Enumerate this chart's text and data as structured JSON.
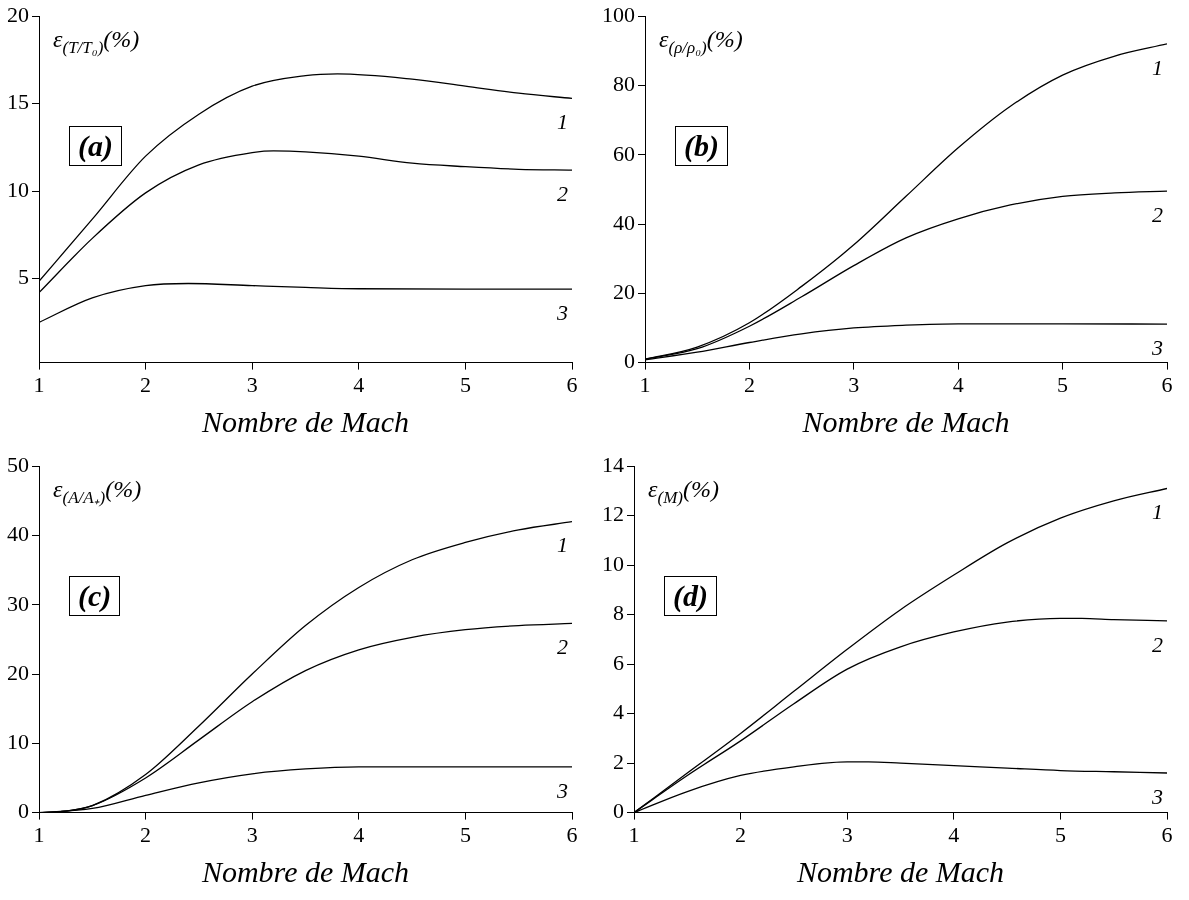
{
  "chart_data": [
    {
      "type": "line",
      "xlabel": "Nombre de Mach",
      "ylabel": "ε$_{(T/T₀)}$(%)",
      "annotations": [
        "(a)"
      ],
      "xlim": [
        1,
        6
      ],
      "xticks": [
        1,
        2,
        3,
        4,
        5,
        6
      ],
      "ylim": [
        0.2,
        20
      ],
      "yticks": [
        5,
        10,
        15,
        20
      ],
      "grid": false,
      "legend": false,
      "marker": "none",
      "line_style": "solid",
      "series": [
        {
          "name": "1",
          "color": "#000000",
          "x": [
            1,
            1.5,
            2,
            2.5,
            3,
            3.5,
            3.8,
            4.5,
            5,
            5.5,
            6
          ],
          "values": [
            4.85,
            8.4,
            12.0,
            14.4,
            16.0,
            16.6,
            16.7,
            16.4,
            16.0,
            15.6,
            15.3
          ]
        },
        {
          "name": "2",
          "color": "#000000",
          "x": [
            1,
            1.5,
            2,
            2.5,
            3,
            3.2,
            3.5,
            4,
            4.5,
            5,
            5.5,
            6
          ],
          "values": [
            4.2,
            7.3,
            9.9,
            11.5,
            12.2,
            12.3,
            12.25,
            12.0,
            11.6,
            11.4,
            11.25,
            11.2
          ]
        },
        {
          "name": "3",
          "color": "#000000",
          "x": [
            1,
            1.5,
            2,
            2.4,
            3,
            3.5,
            4,
            5,
            6
          ],
          "values": [
            2.5,
            3.9,
            4.6,
            4.72,
            4.6,
            4.5,
            4.42,
            4.4,
            4.4
          ]
        }
      ]
    },
    {
      "type": "line",
      "xlabel": "Nombre de Mach",
      "ylabel": "ε$_{(ρ/ρ₀)}$(%)",
      "annotations": [
        "(b)"
      ],
      "xlim": [
        1,
        6
      ],
      "xticks": [
        1,
        2,
        3,
        4,
        5,
        6
      ],
      "ylim": [
        0,
        100
      ],
      "yticks": [
        0,
        20,
        40,
        60,
        80,
        100
      ],
      "grid": false,
      "legend": false,
      "marker": "none",
      "line_style": "solid",
      "series": [
        {
          "name": "1",
          "color": "#000000",
          "x": [
            1,
            1.5,
            2,
            2.5,
            3,
            3.5,
            4,
            4.5,
            5,
            5.5,
            6
          ],
          "values": [
            1,
            4.5,
            11.5,
            22,
            34,
            48,
            62,
            74,
            83,
            88.5,
            92
          ]
        },
        {
          "name": "2",
          "color": "#000000",
          "x": [
            1,
            1.5,
            2,
            2.5,
            3,
            3.5,
            4,
            4.5,
            5,
            5.5,
            6
          ],
          "values": [
            1,
            4,
            10.5,
            19,
            28,
            36,
            41.5,
            45.5,
            48,
            49,
            49.5
          ]
        },
        {
          "name": "3",
          "color": "#000000",
          "x": [
            1,
            1.5,
            2,
            2.5,
            3,
            3.5,
            4,
            5,
            6
          ],
          "values": [
            0.8,
            3,
            5.8,
            8.3,
            10,
            10.8,
            11.2,
            11.2,
            11.1
          ]
        }
      ]
    },
    {
      "type": "line",
      "xlabel": "Nombre de Mach",
      "ylabel": "ε$_{(A/A₊)}$(%)",
      "annotations": [
        "(c)"
      ],
      "xlim": [
        1,
        6
      ],
      "xticks": [
        1,
        2,
        3,
        4,
        5,
        6
      ],
      "ylim": [
        0,
        50
      ],
      "yticks": [
        0,
        10,
        20,
        30,
        40,
        50
      ],
      "grid": false,
      "legend": false,
      "marker": "none",
      "line_style": "solid",
      "series": [
        {
          "name": "1",
          "color": "#000000",
          "x": [
            1,
            1.25,
            1.5,
            2,
            2.5,
            3,
            3.5,
            4,
            4.5,
            5,
            5.5,
            6
          ],
          "values": [
            0,
            0.2,
            1.0,
            5.5,
            12.5,
            20,
            27,
            32.5,
            36.5,
            39,
            40.8,
            42
          ]
        },
        {
          "name": "2",
          "color": "#000000",
          "x": [
            1,
            1.25,
            1.5,
            2,
            2.5,
            3,
            3.5,
            4,
            4.5,
            5,
            5.5,
            6
          ],
          "values": [
            0,
            0.2,
            1.0,
            5,
            10.5,
            16,
            20.5,
            23.5,
            25.3,
            26.4,
            27,
            27.3
          ]
        },
        {
          "name": "3",
          "color": "#000000",
          "x": [
            1,
            1.5,
            2,
            2.5,
            3,
            3.5,
            4,
            5,
            6
          ],
          "values": [
            0,
            0.6,
            2.5,
            4.3,
            5.6,
            6.3,
            6.6,
            6.6,
            6.6
          ]
        }
      ]
    },
    {
      "type": "line",
      "xlabel": "Nombre de Mach",
      "ylabel": "ε$_{(M)}$(%)",
      "annotations": [
        "(d)"
      ],
      "xlim": [
        1,
        6
      ],
      "xticks": [
        1,
        2,
        3,
        4,
        5,
        6
      ],
      "ylim": [
        0,
        14
      ],
      "yticks": [
        0,
        2,
        4,
        6,
        8,
        10,
        12,
        14
      ],
      "grid": false,
      "legend": false,
      "marker": "none",
      "line_style": "solid",
      "series": [
        {
          "name": "1",
          "color": "#000000",
          "x": [
            1,
            1.5,
            2,
            2.5,
            3,
            3.5,
            4,
            4.5,
            5,
            5.5,
            6
          ],
          "values": [
            0,
            1.6,
            3.2,
            4.9,
            6.6,
            8.2,
            9.6,
            10.9,
            11.9,
            12.6,
            13.1
          ]
        },
        {
          "name": "2",
          "color": "#000000",
          "x": [
            1,
            1.5,
            2,
            2.5,
            3,
            3.5,
            4,
            4.5,
            5,
            5.2,
            5.5,
            6
          ],
          "values": [
            0,
            1.5,
            2.9,
            4.4,
            5.8,
            6.7,
            7.3,
            7.7,
            7.85,
            7.85,
            7.8,
            7.75
          ]
        },
        {
          "name": "3",
          "color": "#000000",
          "x": [
            1,
            1.5,
            2,
            2.5,
            3,
            3.2,
            3.5,
            4,
            4.5,
            5,
            5.5,
            6
          ],
          "values": [
            0,
            0.85,
            1.5,
            1.85,
            2.05,
            2.05,
            2.0,
            1.9,
            1.8,
            1.7,
            1.65,
            1.6
          ]
        }
      ]
    }
  ]
}
